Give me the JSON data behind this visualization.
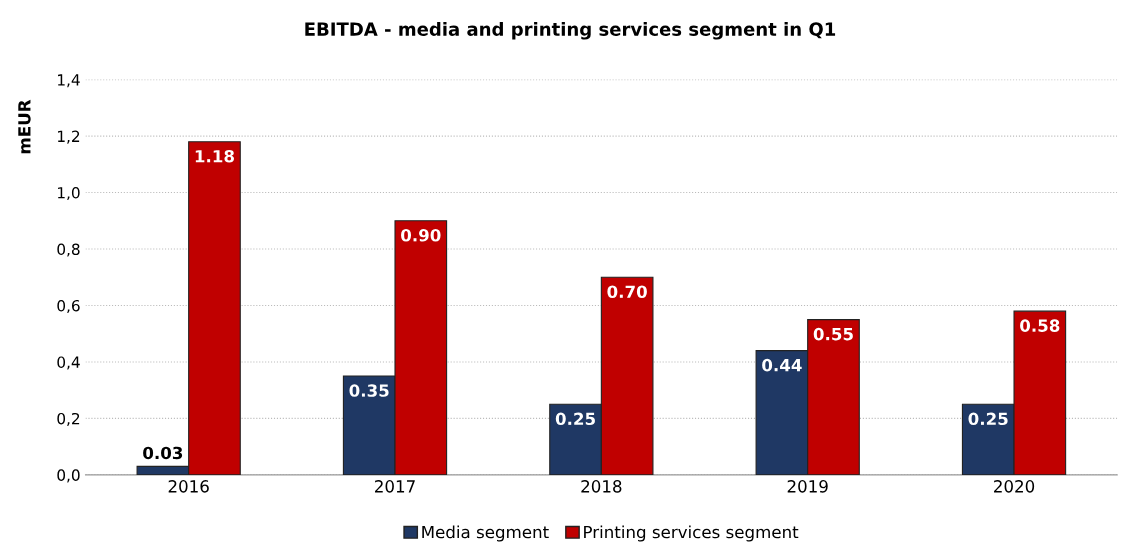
{
  "chart_data": {
    "type": "bar",
    "title": "EBITDA - media and printing services segment in Q1",
    "ylabel": "mEUR",
    "categories": [
      "2016",
      "2017",
      "2018",
      "2019",
      "2020"
    ],
    "series": [
      {
        "name": "Media segment",
        "color": "#1f3864",
        "values": [
          0.03,
          0.35,
          0.25,
          0.44,
          0.25
        ],
        "value_labels": [
          "0.03",
          "0.35",
          "0.25",
          "0.44",
          "0.25"
        ]
      },
      {
        "name": "Printing services segment",
        "color": "#c00000",
        "values": [
          1.18,
          0.9,
          0.7,
          0.55,
          0.58
        ],
        "value_labels": [
          "1.18",
          "0.90",
          "0.70",
          "0.55",
          "0.58"
        ]
      }
    ],
    "ylim": [
      0,
      1.4
    ],
    "yticks": [
      {
        "value": 0,
        "label": "0,0"
      },
      {
        "value": 0.2,
        "label": "0,2"
      },
      {
        "value": 0.4,
        "label": "0,4"
      },
      {
        "value": 0.6,
        "label": "0,6"
      },
      {
        "value": 0.8,
        "label": "0,8"
      },
      {
        "value": 1.0,
        "label": "1,0"
      },
      {
        "value": 1.2,
        "label": "1,2"
      },
      {
        "value": 1.4,
        "label": "1,4"
      }
    ],
    "grid": "y",
    "legend": "bottom"
  }
}
